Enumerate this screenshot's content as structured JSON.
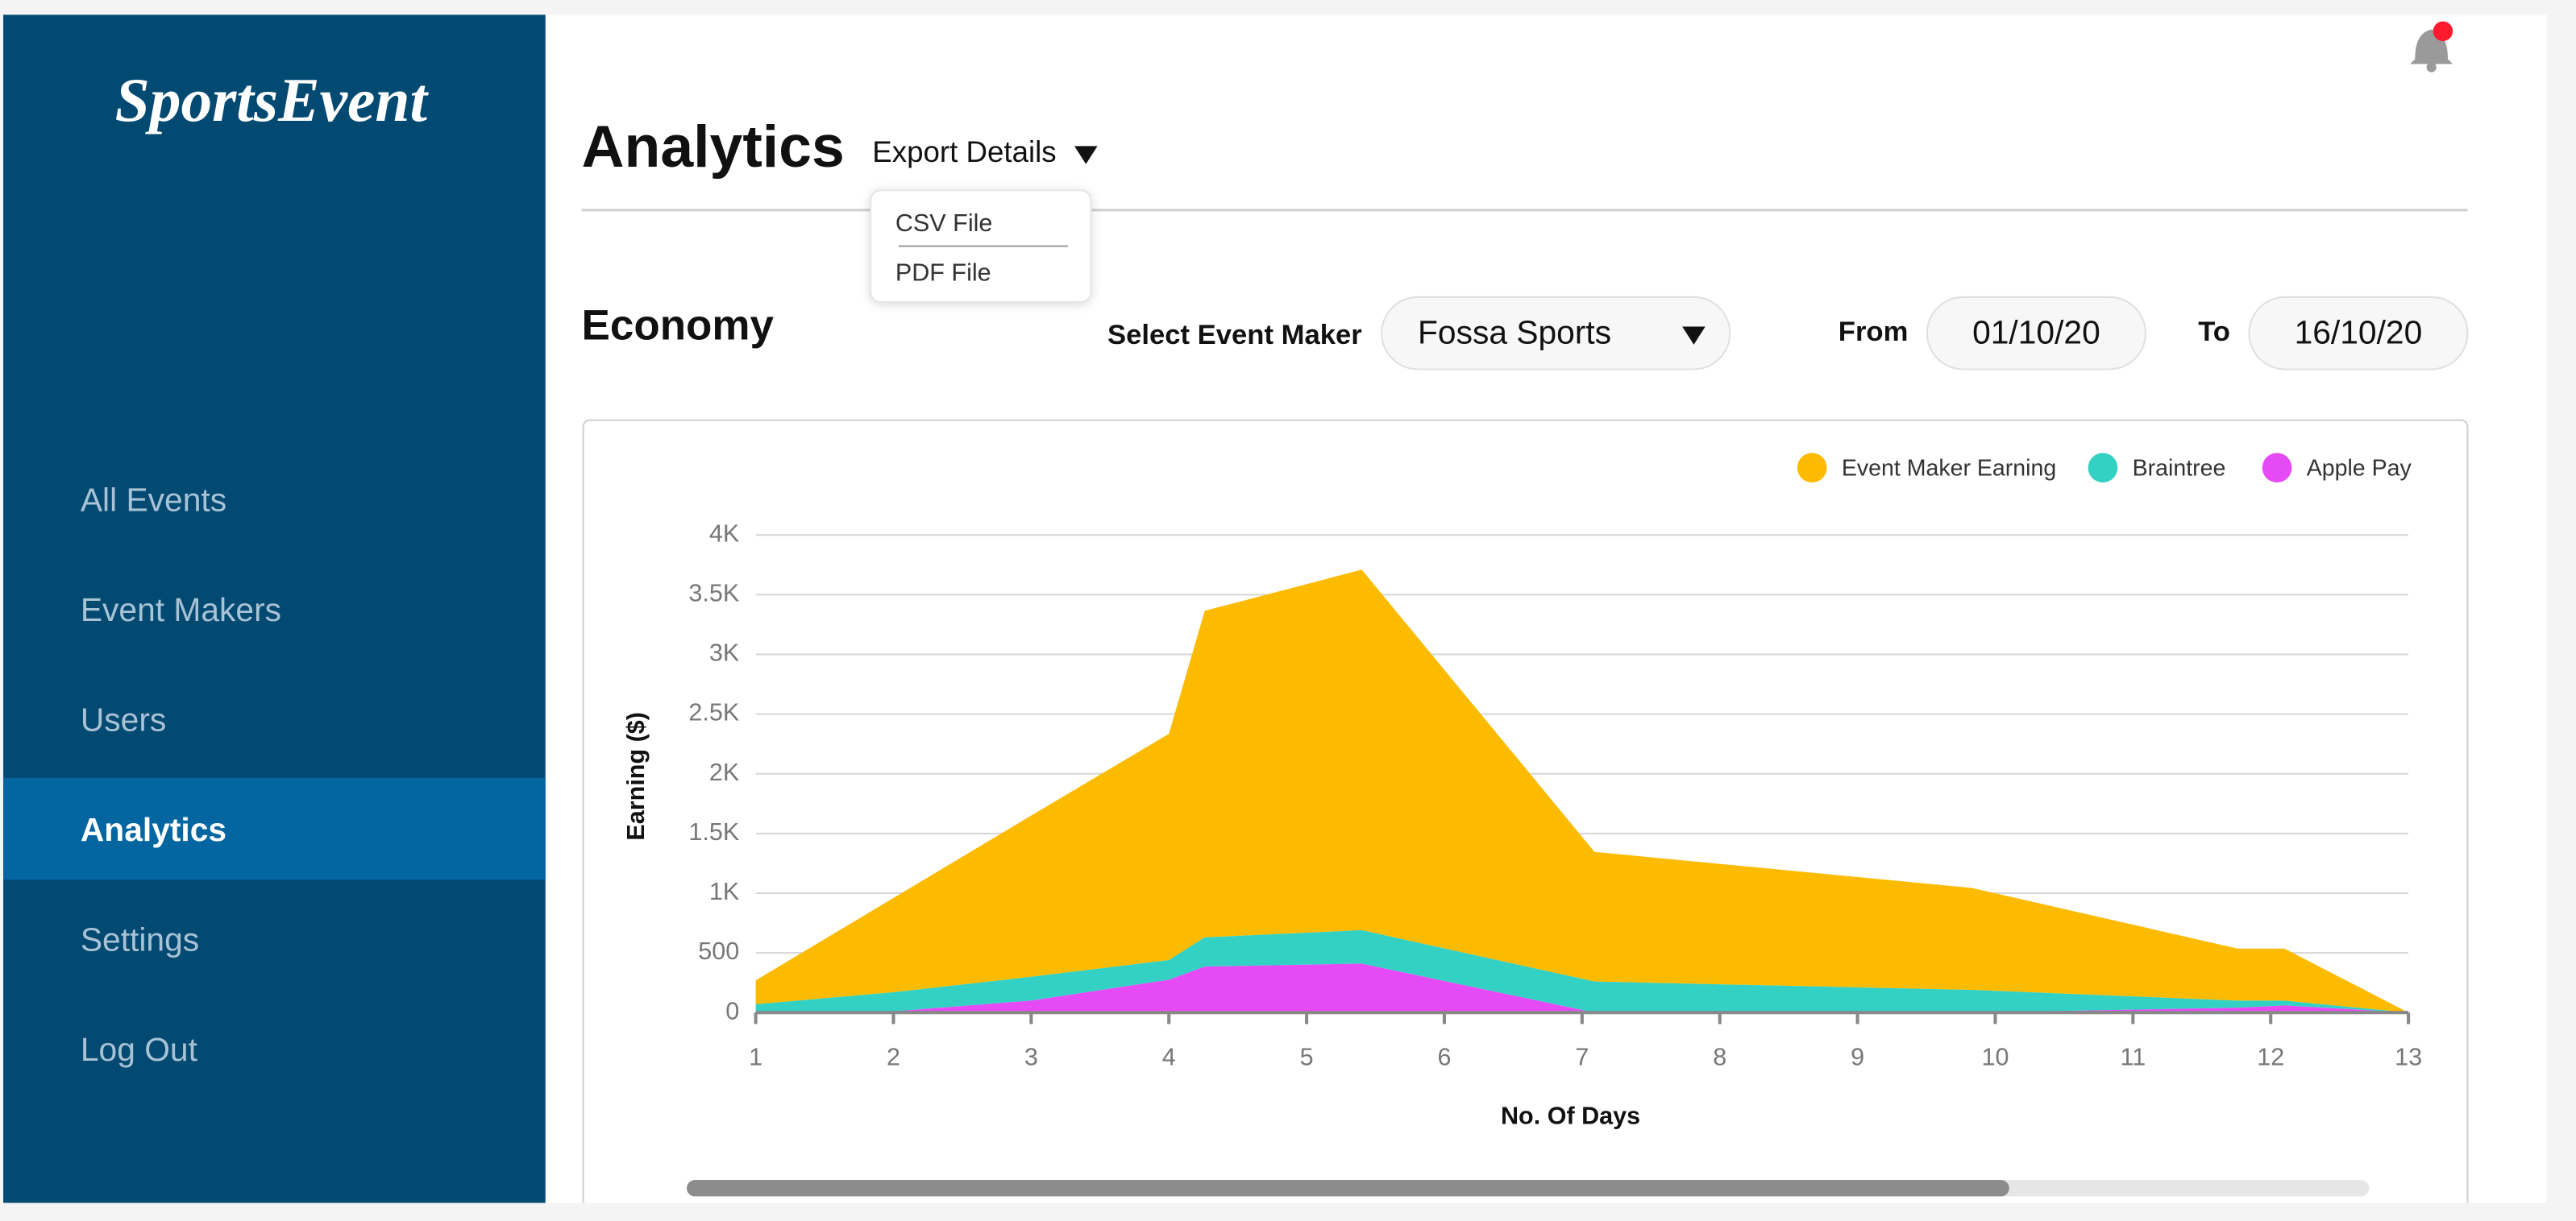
{
  "sidebar": {
    "logo": "SportsEvent",
    "menu": [
      "All Events",
      "Event Makers",
      "Users",
      "Analytics",
      "Settings",
      "Log Out"
    ]
  },
  "header": {
    "title": "Analytics",
    "export": "Export Details",
    "export_menu": [
      "CSV File",
      "PDF File"
    ]
  },
  "filters": {
    "section": "Economy",
    "maker_label": "Select Event Maker",
    "maker": "Fossa Sports",
    "from_label": "From",
    "from": "01/10/20",
    "to_label": "To",
    "to": "16/10/20"
  },
  "chart_data": {
    "type": "stacked-area",
    "x_label": "No. Of Days",
    "y_label": "Earning ($)",
    "x": [
      1,
      2,
      3,
      4,
      4.26,
      5.4,
      7.09,
      9.83,
      11.76,
      12.1,
      13
    ],
    "series": [
      {
        "name": "Event Maker Earning",
        "color": "#fdbb00",
        "values": [
          200,
          790,
          1350,
          1895,
          2735,
          3020,
          1086,
          854,
          436,
          436,
          0
        ]
      },
      {
        "name": "Braintree",
        "color": "#33d1c4",
        "values": [
          60,
          160,
          200,
          165,
          245,
          280,
          260,
          190,
          60,
          40,
          0
        ]
      },
      {
        "name": "Apple Pay",
        "color": "#e64af5",
        "values": [
          10,
          10,
          100,
          275,
          385,
          410,
          0,
          0,
          40,
          60,
          0
        ]
      }
    ],
    "xlim": [
      1,
      13
    ],
    "xticks": [
      1,
      2,
      3,
      4,
      5,
      6,
      7,
      8,
      9,
      10,
      11,
      12,
      13
    ],
    "ylim": [
      0,
      4000
    ],
    "yticks": [
      0,
      500,
      {
        "value": 1000,
        "label": "1K"
      },
      {
        "value": 1500,
        "label": "1.5K"
      },
      {
        "value": 2000,
        "label": "2K"
      },
      {
        "value": 2500,
        "label": "2.5K"
      },
      {
        "value": 3000,
        "label": "3K"
      },
      {
        "value": 3500,
        "label": "3.5K"
      },
      {
        "value": 4000,
        "label": "4K"
      }
    ],
    "grid": true,
    "legend": "top-right"
  }
}
